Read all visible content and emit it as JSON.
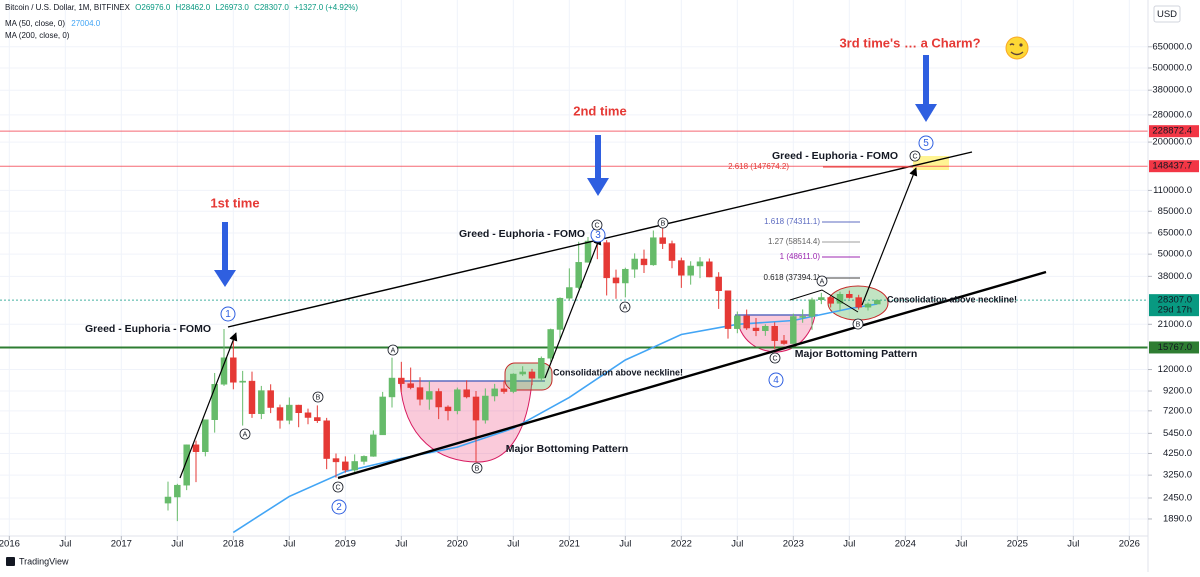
{
  "chart_data": {
    "type": "candlestick",
    "header": {
      "symbol": "Bitcoin / U.S. Dollar, 1M, BITFINEX",
      "ohlc": [
        "O26976.0",
        "H28462.0",
        "L26973.0",
        "C28307.0"
      ],
      "change": "+1327.0 (+4.92%)"
    },
    "indicators": [
      {
        "name": "MA (50, close, 0)",
        "value_label": "27004.0",
        "color": "#42a5f5",
        "x": [
          "2018-01",
          "2018-07",
          "2019-01",
          "2019-07",
          "2020-01",
          "2020-07",
          "2021-01",
          "2021-07",
          "2022-01",
          "2022-07",
          "2023-01",
          "2023-07",
          "2023-10"
        ],
        "values": [
          1600,
          2500,
          3400,
          4000,
          4600,
          5800,
          8500,
          13500,
          18500,
          21000,
          22000,
          25500,
          27004
        ]
      },
      {
        "name": "MA (200, close, 0)"
      }
    ],
    "x": [
      "2017-06",
      "2017-07",
      "2017-08",
      "2017-09",
      "2017-10",
      "2017-11",
      "2017-12",
      "2018-01",
      "2018-02",
      "2018-03",
      "2018-04",
      "2018-05",
      "2018-06",
      "2018-07",
      "2018-08",
      "2018-09",
      "2018-10",
      "2018-11",
      "2018-12",
      "2019-01",
      "2019-02",
      "2019-03",
      "2019-04",
      "2019-05",
      "2019-06",
      "2019-07",
      "2019-08",
      "2019-09",
      "2019-10",
      "2019-11",
      "2019-12",
      "2020-01",
      "2020-02",
      "2020-03",
      "2020-04",
      "2020-05",
      "2020-06",
      "2020-07",
      "2020-08",
      "2020-09",
      "2020-10",
      "2020-11",
      "2020-12",
      "2021-01",
      "2021-02",
      "2021-03",
      "2021-04",
      "2021-05",
      "2021-06",
      "2021-07",
      "2021-08",
      "2021-09",
      "2021-10",
      "2021-11",
      "2021-12",
      "2022-01",
      "2022-02",
      "2022-03",
      "2022-04",
      "2022-05",
      "2022-06",
      "2022-07",
      "2022-08",
      "2022-09",
      "2022-10",
      "2022-11",
      "2022-12",
      "2023-01",
      "2023-02",
      "2023-03",
      "2023-04",
      "2023-05",
      "2023-06",
      "2023-07",
      "2023-08",
      "2023-09",
      "2023-10"
    ],
    "open": [
      2300,
      2480,
      2870,
      4730,
      4340,
      6450,
      10000,
      13880,
      10250,
      10400,
      6950,
      9250,
      7500,
      6400,
      7730,
      7030,
      6630,
      6370,
      3990,
      3830,
      3460,
      3850,
      4100,
      5350,
      8550,
      10800,
      10080,
      9600,
      8300,
      9150,
      7550,
      7200,
      9350,
      8550,
      6420,
      8650,
      9450,
      9140,
      11350,
      11650,
      10780,
      13800,
      19700,
      29000,
      33100,
      45200,
      58800,
      57700,
      37300,
      35000,
      41500,
      47100,
      43800,
      61300,
      57000,
      46200,
      38500,
      43200,
      45500,
      37700,
      31800,
      19900,
      23300,
      20050,
      19400,
      20500,
      17150,
      16550,
      23130,
      23150,
      28450,
      29250,
      27200,
      30450,
      29230,
      25950,
      26976
    ],
    "high": [
      3000,
      2920,
      4750,
      4980,
      6450,
      11500,
      19800,
      17200,
      11800,
      11700,
      9800,
      10000,
      7780,
      8500,
      7760,
      7400,
      7700,
      6600,
      4250,
      4100,
      4200,
      4150,
      5650,
      9100,
      13900,
      13200,
      12300,
      10900,
      10400,
      9500,
      7700,
      9600,
      10500,
      9200,
      9500,
      10050,
      10400,
      11450,
      12500,
      12100,
      14100,
      19900,
      29300,
      41950,
      58300,
      61800,
      64900,
      59500,
      41300,
      42300,
      50500,
      52900,
      67000,
      69000,
      59100,
      47900,
      45800,
      48200,
      47400,
      40000,
      31900,
      24600,
      25200,
      22700,
      21000,
      21500,
      18400,
      23950,
      25250,
      29200,
      31000,
      29850,
      31450,
      31850,
      30250,
      27500,
      28462
    ],
    "low": [
      2100,
      1840,
      2700,
      2980,
      4100,
      5500,
      9800,
      9400,
      6000,
      6600,
      6500,
      7000,
      5780,
      6100,
      5880,
      6100,
      6200,
      3500,
      3150,
      3350,
      3380,
      3700,
      4080,
      5350,
      7500,
      9100,
      9400,
      7700,
      7300,
      6500,
      6400,
      6900,
      8400,
      3800,
      6150,
      8100,
      8900,
      8950,
      11100,
      9900,
      10400,
      13200,
      17600,
      28100,
      32400,
      45000,
      47000,
      30000,
      28800,
      29300,
      37300,
      39600,
      43300,
      53300,
      42000,
      32950,
      34300,
      37200,
      37600,
      25400,
      17600,
      18800,
      19600,
      18150,
      18200,
      15500,
      16300,
      16500,
      21400,
      19600,
      26950,
      25850,
      24800,
      28850,
      25200,
      24900,
      26973
    ],
    "close": [
      2480,
      2870,
      4730,
      4340,
      6450,
      10000,
      13880,
      10250,
      10400,
      6950,
      9250,
      7500,
      6400,
      7730,
      7030,
      6630,
      6370,
      3990,
      3830,
      3460,
      3850,
      4100,
      5350,
      8550,
      10800,
      10080,
      9600,
      8300,
      9150,
      7550,
      7200,
      9350,
      8550,
      6420,
      8650,
      9450,
      9140,
      11350,
      11650,
      10780,
      13800,
      19700,
      29000,
      33100,
      45200,
      58800,
      57700,
      37300,
      35000,
      41500,
      47100,
      43800,
      61300,
      57000,
      46200,
      38500,
      43200,
      45500,
      37700,
      31800,
      19900,
      23300,
      20050,
      19400,
      20500,
      17150,
      16550,
      23130,
      23150,
      28450,
      29250,
      27200,
      30450,
      29230,
      25950,
      26976,
      28307
    ],
    "up_color": "#66bb6a",
    "down_color": "#e53935",
    "log_y": true,
    "grid": true,
    "currency": "USD",
    "ylim": [
      1550,
      1090000
    ],
    "yticks": [
      {
        "value": 1890,
        "label": "1890.0"
      },
      {
        "value": 2450,
        "label": "2450.0"
      },
      {
        "value": 3250,
        "label": "3250.0"
      },
      {
        "value": 4250,
        "label": "4250.0"
      },
      {
        "value": 5450,
        "label": "5450.0"
      },
      {
        "value": 7200,
        "label": "7200.0"
      },
      {
        "value": 9200,
        "label": "9200.0"
      },
      {
        "value": 12000,
        "label": "12000.0"
      },
      {
        "value": 21000,
        "label": "21000.0"
      },
      {
        "value": 38000,
        "label": "38000.0"
      },
      {
        "value": 50000,
        "label": "50000.0"
      },
      {
        "value": 65000,
        "label": "65000.0"
      },
      {
        "value": 85000,
        "label": "85000.0"
      },
      {
        "value": 110000,
        "label": "110000.0"
      },
      {
        "value": 200000,
        "label": "200000.0"
      },
      {
        "value": 280000,
        "label": "280000.0"
      },
      {
        "value": 380000,
        "label": "380000.0"
      },
      {
        "value": 500000,
        "label": "500000.0"
      },
      {
        "value": 650000,
        "label": "650000.0"
      }
    ],
    "price_lines": [
      {
        "value": 228872.4,
        "label": "228872.4",
        "color": "#f23645"
      },
      {
        "value": 148437.7,
        "label": "148437.7",
        "color": "#f23645"
      },
      {
        "value": 28307,
        "label": "28307.0",
        "color": "#089981",
        "countdown": "29d 17h"
      },
      {
        "value": 15767,
        "label": "15767.0",
        "color": "#2e7d32"
      }
    ],
    "xlim": [
      "2015-12",
      "2026-03"
    ],
    "xticks": [
      {
        "value": "2016-01",
        "label": "2016"
      },
      {
        "value": "2016-07",
        "label": "Jul"
      },
      {
        "value": "2017-01",
        "label": "2017"
      },
      {
        "value": "2017-07",
        "label": "Jul"
      },
      {
        "value": "2018-01",
        "label": "2018"
      },
      {
        "value": "2018-07",
        "label": "Jul"
      },
      {
        "value": "2019-01",
        "label": "2019"
      },
      {
        "value": "2019-07",
        "label": "Jul"
      },
      {
        "value": "2020-01",
        "label": "2020"
      },
      {
        "value": "2020-07",
        "label": "Jul"
      },
      {
        "value": "2021-01",
        "label": "2021"
      },
      {
        "value": "2021-07",
        "label": "Jul"
      },
      {
        "value": "2022-01",
        "label": "2022"
      },
      {
        "value": "2022-07",
        "label": "Jul"
      },
      {
        "value": "2023-01",
        "label": "2023"
      },
      {
        "value": "2023-07",
        "label": "Jul"
      },
      {
        "value": "2024-01",
        "label": "2024"
      },
      {
        "value": "2024-07",
        "label": "Jul"
      },
      {
        "value": "2025-01",
        "label": "2025"
      },
      {
        "value": "2025-07",
        "label": "Jul"
      },
      {
        "value": "2026-01",
        "label": "2026"
      }
    ],
    "annotations": [
      "1st time",
      "2nd time",
      "3rd time's … a Charm?",
      "Greed - Euphoria - FOMO",
      "Greed - Euphoria - FOMO",
      "Greed - Euphoria - FOMO",
      "Consolidation above neckline!",
      "Consolidation above neckline!",
      "Major Bottoming Pattern",
      "Major Bottoming Pattern"
    ],
    "fib_levels": [
      "2.618 (147674.2)",
      "1.618 (74311.1)",
      "1.27 (58514.4)",
      "1 (48611.0)",
      "0.618 (37394.1)"
    ],
    "wave_numbers": [
      "1",
      "2",
      "3",
      "4",
      "5"
    ],
    "wave_letters": [
      "A",
      "B",
      "C",
      "A",
      "B",
      "C",
      "A",
      "B",
      "C",
      "A",
      "B",
      "C"
    ]
  },
  "footer": {
    "brand": "TradingView"
  }
}
